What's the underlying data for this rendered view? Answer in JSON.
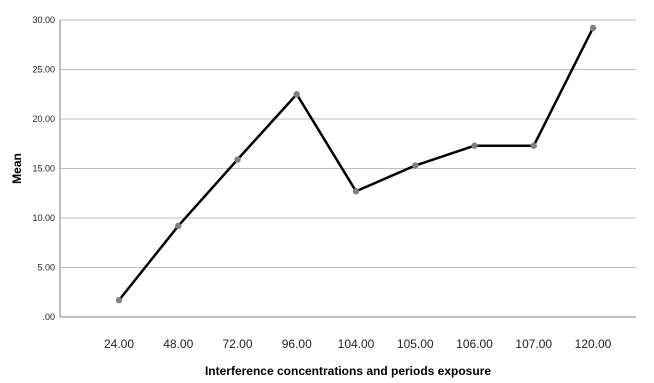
{
  "chart_data": {
    "type": "line",
    "title": "",
    "xlabel": "Interference concentrations and periods exposure",
    "ylabel": "Mean",
    "categories": [
      "24.00",
      "48.00",
      "72.00",
      "96.00",
      "104.00",
      "105.00",
      "106.00",
      "107.00",
      "120.00"
    ],
    "series": [
      {
        "values": [
          1.7,
          9.2,
          15.9,
          22.5,
          12.7,
          15.3,
          17.3,
          17.3,
          29.2
        ]
      }
    ],
    "ylim": [
      0,
      30
    ],
    "yticks": [
      0,
      5,
      10,
      15,
      20,
      25,
      30
    ],
    "ytick_labels": [
      ".00",
      "5.00",
      "10.00",
      "15.00",
      "20.00",
      "25.00",
      "30.00"
    ],
    "grid": "horizontal",
    "line_color": "#000000",
    "marker_color": "#808080",
    "grid_color": "#bfbfbf"
  }
}
